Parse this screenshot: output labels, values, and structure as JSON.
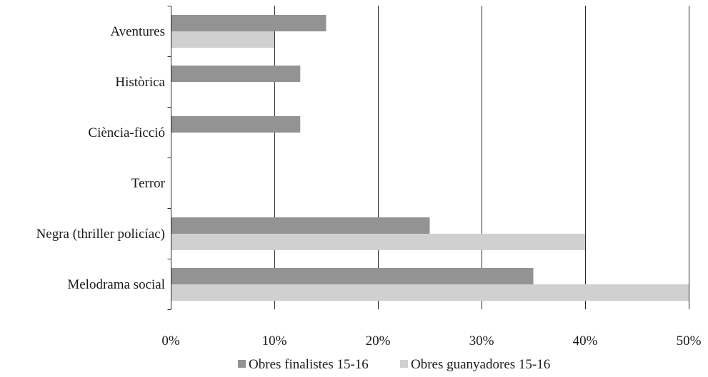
{
  "chart_data": {
    "type": "bar",
    "orientation": "horizontal",
    "categories": [
      "Aventures",
      "Històrica",
      "Ciència-ficció",
      "Terror",
      "Negra (thriller policíac)",
      "Melodrama social"
    ],
    "series": [
      {
        "name": "Obres finalistes 15-16",
        "color": "#939393",
        "values": [
          15,
          12.5,
          12.5,
          0,
          25,
          35
        ]
      },
      {
        "name": "Obres guanyadores 15-16",
        "color": "#d0d0d0",
        "values": [
          10,
          0,
          0,
          0,
          40,
          50
        ]
      }
    ],
    "x_ticks": [
      0,
      10,
      20,
      30,
      40,
      50
    ],
    "x_tick_labels": [
      "0%",
      "10%",
      "20%",
      "30%",
      "40%",
      "50%"
    ],
    "xlim": [
      0,
      50
    ],
    "grid": "vertical",
    "legend_position": "bottom",
    "title": "",
    "xlabel": "",
    "ylabel": ""
  }
}
